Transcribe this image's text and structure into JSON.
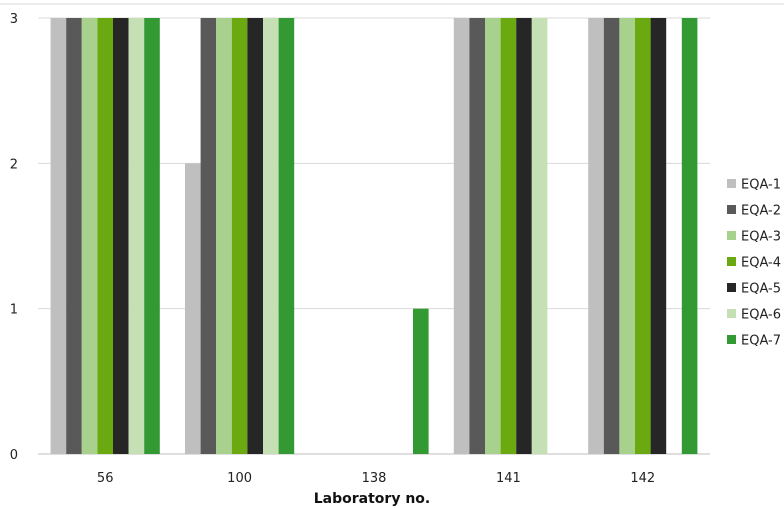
{
  "chart_data": {
    "type": "bar",
    "xlabel": "Laboratory no.",
    "ylabel": "",
    "ylim": [
      0,
      3
    ],
    "yticks": [
      0,
      1,
      2,
      3
    ],
    "grid": true,
    "legend_position": "right",
    "categories": [
      "56",
      "100",
      "138",
      "141",
      "142"
    ],
    "series": [
      {
        "name": "EQA-1",
        "color": "#bfbfbf",
        "values": [
          3,
          2,
          0,
          3,
          3
        ]
      },
      {
        "name": "EQA-2",
        "color": "#595959",
        "values": [
          3,
          3,
          0,
          3,
          3
        ]
      },
      {
        "name": "EQA-3",
        "color": "#a9d18e",
        "values": [
          3,
          3,
          0,
          3,
          3
        ]
      },
      {
        "name": "EQA-4",
        "color": "#6aaa10",
        "values": [
          3,
          3,
          0,
          3,
          3
        ]
      },
      {
        "name": "EQA-5",
        "color": "#262626",
        "values": [
          3,
          3,
          0,
          3,
          3
        ]
      },
      {
        "name": "EQA-6",
        "color": "#c5e0b4",
        "values": [
          3,
          3,
          0,
          3,
          0
        ]
      },
      {
        "name": "EQA-7",
        "color": "#339933",
        "values": [
          3,
          3,
          1,
          0,
          3
        ]
      }
    ]
  }
}
